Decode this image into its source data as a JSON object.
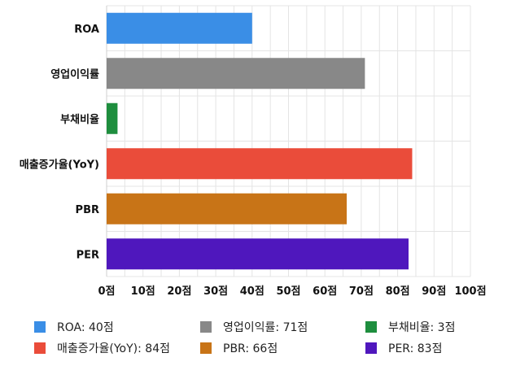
{
  "chart_data": {
    "type": "bar",
    "orientation": "horizontal",
    "categories": [
      "ROA",
      "영업이익률",
      "부채비율",
      "매출증가율(YoY)",
      "PBR",
      "PER"
    ],
    "values": [
      40,
      71,
      3,
      84,
      66,
      83
    ],
    "colors": [
      "#3a8ee6",
      "#888888",
      "#1e8e3e",
      "#ea4c3a",
      "#c87417",
      "#4f17bd"
    ],
    "xlim": [
      0,
      100
    ],
    "xticks": [
      0,
      10,
      20,
      30,
      40,
      50,
      60,
      70,
      80,
      90,
      100
    ],
    "tick_suffix": "점",
    "grid": true,
    "legend_position": "bottom",
    "legend": [
      {
        "label": "ROA: 40점",
        "color": "#3a8ee6"
      },
      {
        "label": "영업이익률: 71점",
        "color": "#888888"
      },
      {
        "label": "부채비율: 3점",
        "color": "#1e8e3e"
      },
      {
        "label": "매출증가율(YoY): 84점",
        "color": "#ea4c3a"
      },
      {
        "label": "PBR: 66점",
        "color": "#c87417"
      },
      {
        "label": "PER: 83점",
        "color": "#4f17bd"
      }
    ]
  }
}
